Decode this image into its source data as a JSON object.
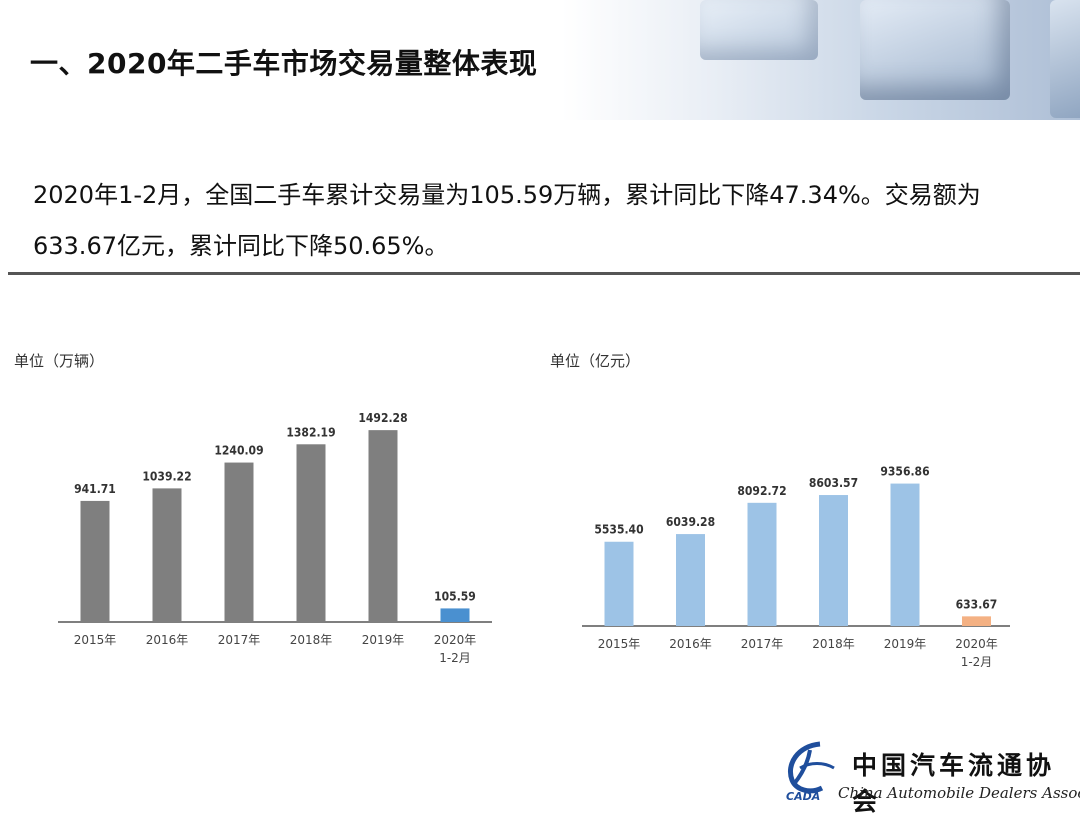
{
  "page_title": "一、2020年二手车市场交易量整体表现",
  "summary_line1": "2020年1-2月，全国二手车累计交易量为105.59万辆，累计同比下降47.34%。交易额为",
  "summary_line2": "633.67亿元，累计同比下降50.65%。",
  "logo": {
    "name_cn": "中国汽车流通协会",
    "name_en": "China Automobile Dealers Association",
    "abbr": "CADA"
  },
  "chart_data": [
    {
      "type": "bar",
      "unit_label": "单位（万辆）",
      "categories": [
        "2015年",
        "2016年",
        "2017年",
        "2018年",
        "2019年",
        "2020年\n1-2月"
      ],
      "values": [
        941.71,
        1039.22,
        1240.09,
        1382.19,
        1492.28,
        105.59
      ],
      "value_labels": [
        "941.71",
        "1039.22",
        "1240.09",
        "1382.19",
        "1492.28",
        "105.59"
      ],
      "colors": [
        "#7f7f7f",
        "#7f7f7f",
        "#7f7f7f",
        "#7f7f7f",
        "#7f7f7f",
        "#4a90d0"
      ],
      "ylim": [
        0,
        1610
      ],
      "grid": false,
      "legend": "none"
    },
    {
      "type": "bar",
      "unit_label": "单位（亿元）",
      "categories": [
        "2015年",
        "2016年",
        "2017年",
        "2018年",
        "2019年",
        "2020年\n1-2月"
      ],
      "values": [
        5535.4,
        6039.28,
        8092.72,
        8603.57,
        9356.86,
        633.67
      ],
      "value_labels": [
        "5535.40",
        "6039.28",
        "8092.72",
        "8603.57",
        "9356.86",
        "633.67"
      ],
      "colors": [
        "#9dc3e6",
        "#9dc3e6",
        "#9dc3e6",
        "#9dc3e6",
        "#9dc3e6",
        "#f4b183"
      ],
      "ylim": [
        0,
        10840
      ],
      "grid": false,
      "legend": "none"
    }
  ]
}
